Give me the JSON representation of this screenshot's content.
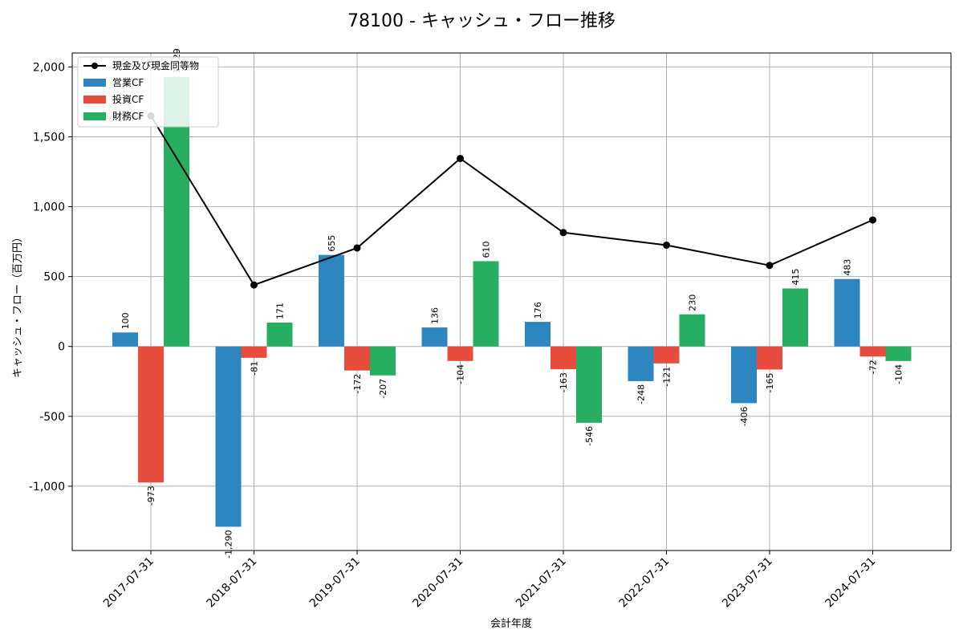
{
  "chart_data": {
    "type": "bar",
    "title": "78100 - キャッシュ・フロー推移",
    "xlabel": "会計年度",
    "ylabel": "キャッシュ・フロー（百万円）",
    "categories": [
      "2017-07-31",
      "2018-07-31",
      "2019-07-31",
      "2020-07-31",
      "2021-07-31",
      "2022-07-31",
      "2023-07-31",
      "2024-07-31"
    ],
    "ylim": [
      -1460,
      2100
    ],
    "yticks": [
      -1000,
      -500,
      0,
      500,
      1000,
      1500,
      2000
    ],
    "ytick_labels": [
      "-1,000",
      "-500",
      "0",
      "500",
      "1,000",
      "1,500",
      "2,000"
    ],
    "grid": true,
    "legend_position": "top-left",
    "series": [
      {
        "name": "営業CF",
        "kind": "bar",
        "color": "#2e86c1",
        "values": [
          100,
          -1290,
          655,
          136,
          176,
          -248,
          -406,
          483
        ],
        "labels": [
          "100",
          "-1,290",
          "655",
          "136",
          "176",
          "-248",
          "-406",
          "483"
        ]
      },
      {
        "name": "投資CF",
        "kind": "bar",
        "color": "#e74c3c",
        "values": [
          -973,
          -81,
          -172,
          -104,
          -163,
          -121,
          -165,
          -72
        ],
        "labels": [
          "-973",
          "-81",
          "-172",
          "-104",
          "-163",
          "-121",
          "-165",
          "-72"
        ]
      },
      {
        "name": "財務CF",
        "kind": "bar",
        "color": "#27ae60",
        "values": [
          1929,
          171,
          -207,
          610,
          -546,
          230,
          415,
          -104
        ],
        "labels": [
          "1,929",
          "171",
          "-207",
          "610",
          "-546",
          "230",
          "415",
          "-104"
        ]
      },
      {
        "name": "現金及び現金同等物",
        "kind": "line",
        "color": "#000000",
        "values": [
          1650,
          440,
          705,
          1345,
          815,
          725,
          580,
          905
        ]
      }
    ]
  }
}
